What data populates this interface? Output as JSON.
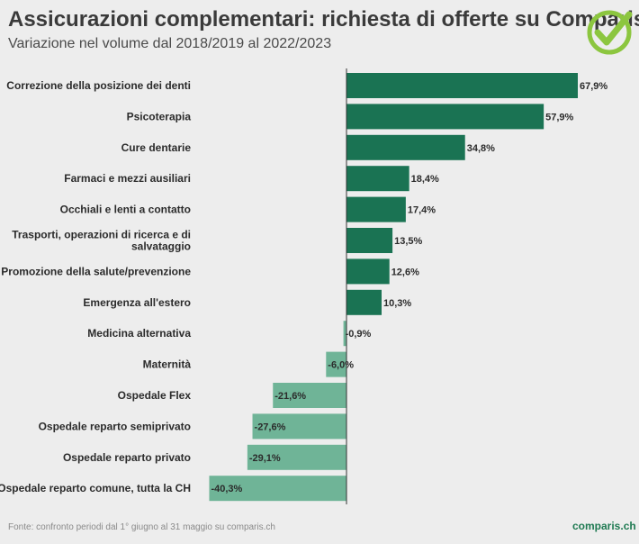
{
  "header": {
    "title": "Assicurazioni complementari: richiesta di offerte su Comparis",
    "subtitle": "Variazione nel volume dal 2018/2019 al 2022/2023"
  },
  "footer": {
    "source": "Fonte: confronto periodi dal 1° giugno al 31 maggio su comparis.ch",
    "brand": "comparis.ch"
  },
  "logo": {
    "icon": "check-circle-icon",
    "color": "#8cc63f"
  },
  "colors": {
    "positive": "#1a7353",
    "negative": "#6fb497",
    "axis": "#333333"
  },
  "chart_data": {
    "type": "bar",
    "orientation": "horizontal",
    "title": "Assicurazioni complementari: richiesta di offerte su Comparis",
    "subtitle": "Variazione nel volume dal 2018/2019 al 2022/2023",
    "categories": [
      "Correzione della posizione dei denti",
      "Psicoterapia",
      "Cure dentarie",
      "Farmaci e mezzi ausiliari",
      "Occhiali e lenti a contatto",
      "Trasporti, operazioni di ricerca e di salvataggio",
      "Promozione della salute/prevenzione",
      "Emergenza all'estero",
      "Medicina alternativa",
      "Maternità",
      "Ospedale Flex",
      "Ospedale reparto semiprivato",
      "Ospedale reparto privato",
      "Ospedale reparto comune, tutta la CH"
    ],
    "values": [
      67.9,
      57.9,
      34.8,
      18.4,
      17.4,
      13.5,
      12.6,
      10.3,
      -0.9,
      -6.0,
      -21.6,
      -27.6,
      -29.1,
      -40.3
    ],
    "value_labels": [
      "67,9%",
      "57,9%",
      "34,8%",
      "18,4%",
      "17,4%",
      "13,5%",
      "12,6%",
      "10,3%",
      "-0,9%",
      "-6,0%",
      "-21,6%",
      "-27,6%",
      "-29,1%",
      "-40,3%"
    ],
    "unit": "%",
    "xlim": [
      -40.3,
      67.9
    ],
    "grid": false,
    "legend": false
  }
}
